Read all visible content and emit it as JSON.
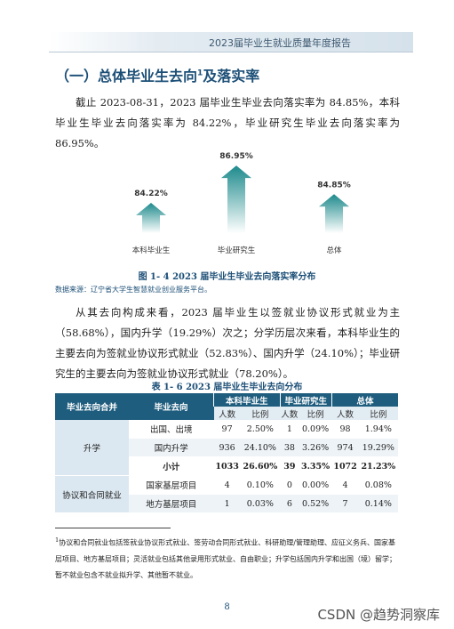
{
  "header": {
    "title": "2023届毕业生就业质量年度报告"
  },
  "section": {
    "heading_before": "（一）总体毕业生去向",
    "footnote_mark": "1",
    "heading_after": "及落实率"
  },
  "paragraphs": [
    "截止 2023-08-31，2023 届毕业生毕业去向落实率为 84.85%，本科毕业生毕业去向落实率为 84.22%，毕业研究生毕业去向落实率为 86.95%。",
    "从其去向构成来看，2023 届毕业生以签就业协议形式就业为主（58.68%），国内升学（19.29%）次之；分学历层次来看，本科毕业生的主要去向为签就业协议形式就业（52.83%）、国内升学（24.10%）；毕业研究生的主要去向为签就业协议形式就业（78.20%）。"
  ],
  "figure": {
    "type": "bar",
    "categories": [
      "本科毕业生",
      "毕业研究生",
      "总体"
    ],
    "values": [
      84.22,
      86.95,
      84.85
    ],
    "value_labels": [
      "84.22%",
      "86.95%",
      "84.85%"
    ],
    "ylim": [
      82,
      88
    ],
    "color": "#1d8a8c",
    "caption": "图 1- 4  2023 届毕业生毕业去向落实率分布",
    "source": "数据来源：辽宁省大学生智慧就业创业服务平台。"
  },
  "table": {
    "caption": "表 1- 6  2023 届毕业生毕业去向分布",
    "header": {
      "group": "毕业去向合并",
      "dest": "毕业去向",
      "cols": [
        "本科毕业生",
        "毕业研究生",
        "总体"
      ],
      "sub": [
        "人数",
        "比例"
      ]
    },
    "groups": [
      {
        "name": "升学",
        "rows": [
          [
            "出国、出境",
            "97",
            "2.50%",
            "1",
            "0.09%",
            "98",
            "1.94%"
          ],
          [
            "国内升学",
            "936",
            "24.10%",
            "38",
            "3.26%",
            "974",
            "19.29%"
          ],
          [
            "小计",
            "1033",
            "26.60%",
            "39",
            "3.35%",
            "1072",
            "21.23%"
          ]
        ]
      },
      {
        "name": "协议和合同就业",
        "rows": [
          [
            "国家基层项目",
            "4",
            "0.10%",
            "0",
            "0.00%",
            "4",
            "0.08%"
          ],
          [
            "地方基层项目",
            "1",
            "0.03%",
            "6",
            "0.52%",
            "7",
            "0.14%"
          ]
        ]
      }
    ]
  },
  "footnote": {
    "mark": "1",
    "text": "协议和合同就业包括签就业协议形式就业、签劳动合同形式就业、科研助理/管理助理、应征义务兵、国家基层项目、地方基层项目；灵活就业包括其他录用形式就业、自由职业；升学包括国内升学和出国（境）留学；暂不就业包含不就业拟升学、其他暂不就业。"
  },
  "page_number": "8",
  "watermark": "CSDN @趋势洞察库"
}
